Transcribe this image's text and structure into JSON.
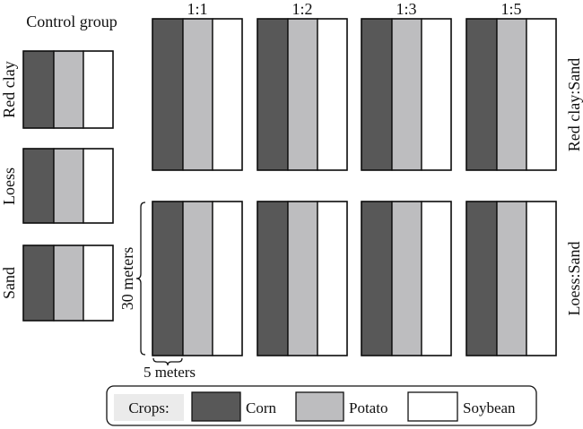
{
  "control": {
    "title": "Control group",
    "soils": [
      "Red clay",
      "Loess",
      "Sand"
    ]
  },
  "ratios": [
    "1:1",
    "1:2",
    "1:3",
    "1:5"
  ],
  "rows": [
    "Red clay:Sand",
    "Loess:Sand"
  ],
  "dimensions": {
    "height_label": "30 meters",
    "width_label": "5 meters"
  },
  "legend": {
    "title": "Crops:",
    "items": [
      {
        "label": "Corn",
        "color": "#585858"
      },
      {
        "label": "Potato",
        "color": "#bdbdbf"
      },
      {
        "label": "Soybean",
        "color": "#ffffff"
      }
    ]
  }
}
